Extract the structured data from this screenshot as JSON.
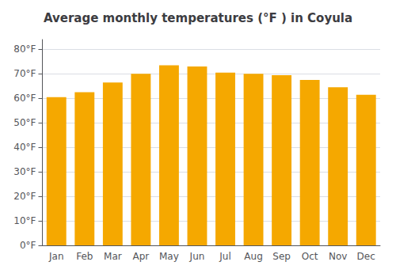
{
  "chart_data": {
    "type": "bar",
    "title": "Average monthly temperatures (°F ) in Coyula",
    "categories": [
      "Jan",
      "Feb",
      "Mar",
      "Apr",
      "May",
      "Jun",
      "Jul",
      "Aug",
      "Sep",
      "Oct",
      "Nov",
      "Dec"
    ],
    "values": [
      60.5,
      62.5,
      66.5,
      70.0,
      73.5,
      73.0,
      70.5,
      70.0,
      69.5,
      67.5,
      64.5,
      61.5
    ],
    "color": "#F5A800",
    "ylim": [
      0,
      84
    ],
    "yticks": [
      {
        "value": 0,
        "label": "0°F"
      },
      {
        "value": 10,
        "label": "10°F"
      },
      {
        "value": 20,
        "label": "20°F"
      },
      {
        "value": 30,
        "label": "30°F"
      },
      {
        "value": 40,
        "label": "40°F"
      },
      {
        "value": 50,
        "label": "50°F"
      },
      {
        "value": 60,
        "label": "60°F"
      },
      {
        "value": 70,
        "label": "70°F"
      },
      {
        "value": 80,
        "label": "80°F"
      }
    ],
    "grid": true
  }
}
